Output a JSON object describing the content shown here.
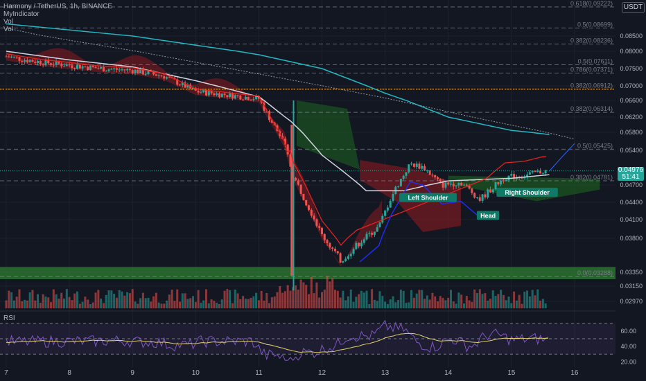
{
  "header": {
    "symbol_line": "Harmony / TetherUS, 1h, BINANCE",
    "indicators": [
      "MyIndicator",
      "Vol",
      "Vol"
    ],
    "currency": "USDT"
  },
  "last_price": {
    "value": "0.04976",
    "countdown": "51:41",
    "color": "#26a69a"
  },
  "rsi": {
    "label": "RSI",
    "ticks": [
      "60.00",
      "40.00",
      "20.00"
    ]
  },
  "colors": {
    "bg": "#131722",
    "up": "#26a69a",
    "down": "#ef5350",
    "ma_white": "#d1d4dc",
    "ma_teal": "#22b8c4",
    "signal_red": "#e0231f",
    "signal_blue": "#1e2cf0",
    "cloud_red": "#8b1a1f",
    "cloud_green": "#1b5e20",
    "support_zone": "#2e7d32",
    "fib_line": "#787b86",
    "orange_line": "#f7a21b",
    "rsi_line": "#7e57c2",
    "rsi_ma": "#e6d26a"
  },
  "chart_data": {
    "type": "candlestick",
    "title": "Harmony / TetherUS, 1h, BINANCE",
    "x_ticks": [
      "7",
      "8",
      "9",
      "10",
      "11",
      "12",
      "13",
      "14",
      "15",
      "16"
    ],
    "y_ticks": [
      0.085,
      0.08,
      0.075,
      0.07,
      0.066,
      0.062,
      0.058,
      0.054,
      0.047,
      0.044,
      0.041,
      0.038,
      0.0335,
      0.0315,
      0.0297
    ],
    "y_tick_labels": [
      "0.08500",
      "0.08000",
      "0.07500",
      "0.07000",
      "0.06600",
      "0.06200",
      "0.05800",
      "0.05400",
      "0.04700",
      "0.04400",
      "0.04100",
      "0.03800",
      "0.03350",
      "0.03150",
      "0.02970"
    ],
    "fib_levels": [
      {
        "label": "0.618(0.09222)",
        "value": 0.09222
      },
      {
        "label": "0.5(0.08699)",
        "value": 0.08699
      },
      {
        "label": "0.382(0.08236)",
        "value": 0.08236
      },
      {
        "label": "0.5(0.07611)",
        "value": 0.07611
      },
      {
        "label": "0.786(0.07371)",
        "value": 0.07371
      },
      {
        "label": "0.382(0.06912)",
        "value": 0.06912
      },
      {
        "label": "0.382(0.06314)",
        "value": 0.06314
      },
      {
        "label": "0.5(0.05425)",
        "value": 0.05425
      },
      {
        "label": "0.382(0.04781)",
        "value": 0.04781
      },
      {
        "label": "0.0(0.03288)",
        "value": 0.03288
      }
    ],
    "support_zone": {
      "low": 0.0325,
      "high": 0.0342
    },
    "annotations": [
      {
        "text": "Left Shoulder",
        "x": 13.68,
        "y": 0.0456
      },
      {
        "text": "Head",
        "x": 14.63,
        "y": 0.0425
      },
      {
        "text": "Right Shoulder",
        "x": 15.25,
        "y": 0.0465
      }
    ],
    "price_path": [
      [
        7.0,
        0.0785
      ],
      [
        7.5,
        0.077
      ],
      [
        8.0,
        0.076
      ],
      [
        8.5,
        0.075
      ],
      [
        9.0,
        0.0745
      ],
      [
        9.5,
        0.0728
      ],
      [
        10.0,
        0.0685
      ],
      [
        10.5,
        0.0675
      ],
      [
        11.0,
        0.0665
      ],
      [
        11.25,
        0.0595
      ],
      [
        11.4,
        0.0555
      ],
      [
        11.55,
        0.0485
      ],
      [
        11.75,
        0.044
      ],
      [
        12.0,
        0.0385
      ],
      [
        12.3,
        0.035
      ],
      [
        12.6,
        0.0375
      ],
      [
        12.9,
        0.0398
      ],
      [
        13.1,
        0.045
      ],
      [
        13.4,
        0.0512
      ],
      [
        13.6,
        0.0505
      ],
      [
        13.9,
        0.047
      ],
      [
        14.2,
        0.0475
      ],
      [
        14.5,
        0.0445
      ],
      [
        14.9,
        0.0485
      ],
      [
        15.2,
        0.0488
      ],
      [
        15.5,
        0.0497
      ]
    ],
    "ma_slow": [
      [
        7.0,
        0.088
      ],
      [
        9.0,
        0.085
      ],
      [
        11.0,
        0.079
      ],
      [
        12.0,
        0.075
      ],
      [
        13.0,
        0.068
      ],
      [
        14.0,
        0.062
      ],
      [
        15.0,
        0.0585
      ],
      [
        15.6,
        0.0575
      ]
    ],
    "ma_fast": [
      [
        7.0,
        0.08
      ],
      [
        8.0,
        0.0775
      ],
      [
        9.0,
        0.0755
      ],
      [
        10.0,
        0.0715
      ],
      [
        11.0,
        0.067
      ],
      [
        11.5,
        0.061
      ],
      [
        12.0,
        0.053
      ],
      [
        12.7,
        0.046
      ],
      [
        13.3,
        0.046
      ],
      [
        14.0,
        0.0478
      ],
      [
        15.0,
        0.0483
      ],
      [
        15.6,
        0.049
      ]
    ],
    "trendline": [
      [
        7.0,
        0.087
      ],
      [
        16.0,
        0.0565
      ]
    ],
    "projection": [
      [
        15.6,
        0.0497
      ],
      [
        16.0,
        0.0555
      ]
    ],
    "rsi_range": [
      15,
      85
    ]
  }
}
